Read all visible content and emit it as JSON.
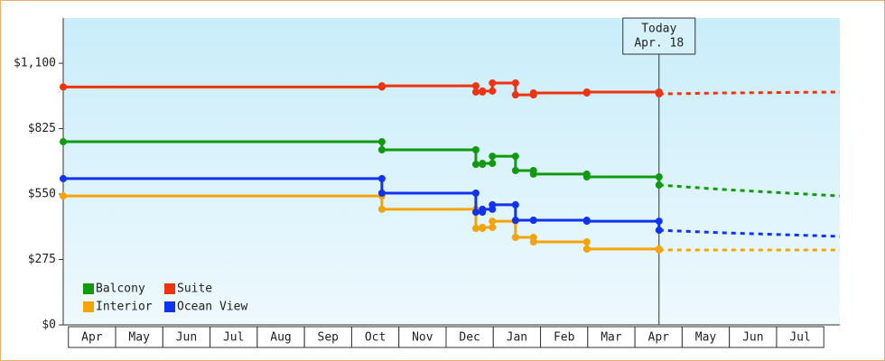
{
  "chart_data": {
    "type": "step-line",
    "x": [
      0,
      6.75,
      8.74,
      8.88,
      9.09,
      9.58,
      9.96,
      11.09,
      12.62
    ],
    "forecast_x": [
      12.62,
      14,
      16.45
    ],
    "xlim": [
      0,
      16.45
    ],
    "xticks": [
      {
        "value": 0.61,
        "label": "Apr"
      },
      {
        "value": 1.61,
        "label": "May"
      },
      {
        "value": 2.61,
        "label": "Jun"
      },
      {
        "value": 3.61,
        "label": "Jul"
      },
      {
        "value": 4.61,
        "label": "Aug"
      },
      {
        "value": 5.61,
        "label": "Sep"
      },
      {
        "value": 6.61,
        "label": "Oct"
      },
      {
        "value": 7.61,
        "label": "Nov"
      },
      {
        "value": 8.61,
        "label": "Dec"
      },
      {
        "value": 9.61,
        "label": "Jan"
      },
      {
        "value": 10.61,
        "label": "Feb"
      },
      {
        "value": 11.61,
        "label": "Mar"
      },
      {
        "value": 12.61,
        "label": "Apr"
      },
      {
        "value": 13.61,
        "label": "May"
      },
      {
        "value": 14.61,
        "label": "Jun"
      },
      {
        "value": 15.61,
        "label": "Jul"
      }
    ],
    "ylim": [
      0,
      1290
    ],
    "yticks": [
      {
        "value": 0,
        "label": "$0"
      },
      {
        "value": 275,
        "label": "$275"
      },
      {
        "value": 550,
        "label": "$550"
      },
      {
        "value": 825,
        "label": "$825"
      },
      {
        "value": 1100,
        "label": "$1,100"
      }
    ],
    "series": [
      {
        "name": "Balcony",
        "color": "#119911",
        "values": [
          770,
          736,
          675,
          679,
          709,
          649,
          634,
          622,
          588
        ],
        "forecast": [
          588,
          569,
          542
        ]
      },
      {
        "name": "Suite",
        "color": "#ee3311",
        "values": [
          1000,
          1005,
          979,
          983,
          1017,
          967,
          975,
          979,
          971
        ],
        "forecast": [
          971,
          975,
          979
        ]
      },
      {
        "name": "Interior",
        "color": "#f5a30a",
        "values": [
          542,
          486,
          406,
          410,
          436,
          368,
          349,
          319,
          315
        ],
        "forecast": [
          315,
          315,
          315
        ]
      },
      {
        "name": "Ocean View",
        "color": "#1133ee",
        "values": [
          615,
          554,
          474,
          486,
          505,
          440,
          440,
          436,
          398
        ],
        "forecast": [
          398,
          387,
          372
        ]
      }
    ],
    "annotation": {
      "x": 12.62,
      "lines": [
        "Today",
        "Apr. 18"
      ]
    },
    "legend": "bottom-left"
  }
}
